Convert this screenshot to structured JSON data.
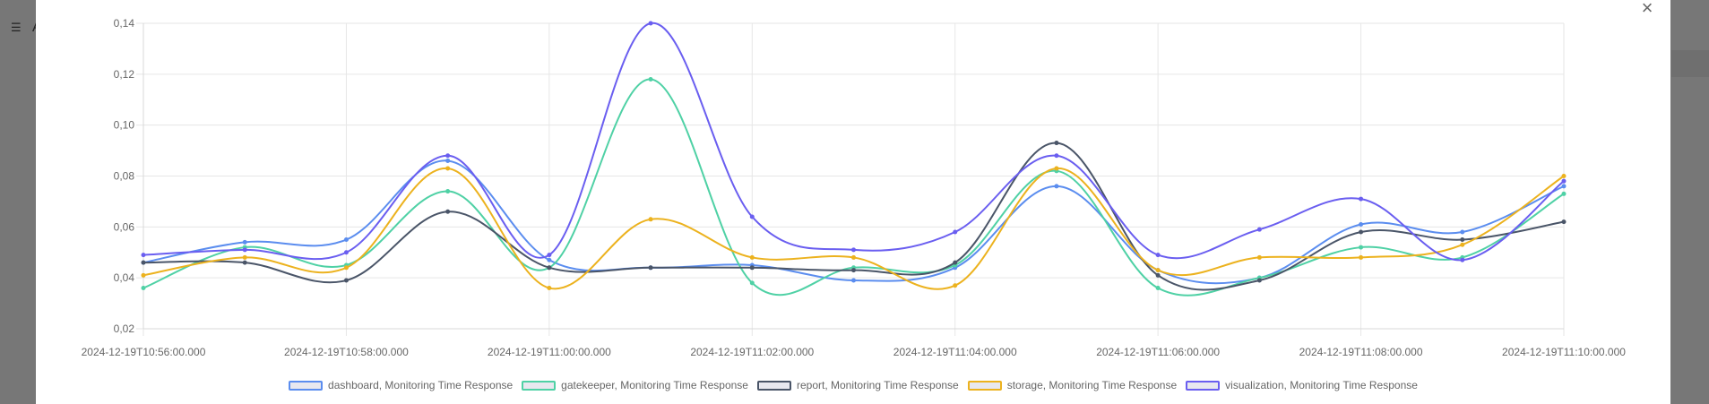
{
  "background": {
    "menu_icon": "list-icon",
    "partial_title": "A"
  },
  "modal": {
    "close_icon": "close-icon",
    "close_glyph": "×"
  },
  "chart_data": {
    "type": "line",
    "title": "",
    "xlabel": "",
    "ylabel": "",
    "ylim": [
      0.02,
      0.14
    ],
    "y_ticks": [
      "0,14",
      "0,12",
      "0,10",
      "0,08",
      "0,06",
      "0,04",
      "0,02"
    ],
    "y_tick_values": [
      0.14,
      0.12,
      0.1,
      0.08,
      0.06,
      0.04,
      0.02
    ],
    "x_tick_labels": [
      "2024-12-19T10:56:00.000",
      "2024-12-19T10:58:00.000",
      "2024-12-19T11:00:00.000",
      "2024-12-19T11:02:00.000",
      "2024-12-19T11:04:00.000",
      "2024-12-19T11:06:00.000",
      "2024-12-19T11:08:00.000",
      "2024-12-19T11:10:00.000"
    ],
    "x": [
      "10:56",
      "10:57",
      "10:58",
      "10:59",
      "11:00",
      "11:01",
      "11:02",
      "11:03",
      "11:04",
      "11:05",
      "11:06",
      "11:07",
      "11:08",
      "11:09",
      "11:10"
    ],
    "grid": true,
    "legend_position": "bottom",
    "series": [
      {
        "name": "dashboard, Monitoring Time Response",
        "color": "#5b8def",
        "values": [
          0.046,
          0.054,
          0.055,
          0.086,
          0.047,
          0.044,
          0.045,
          0.039,
          0.044,
          0.076,
          0.043,
          0.04,
          0.061,
          0.058,
          0.076
        ]
      },
      {
        "name": "gatekeeper, Monitoring Time Response",
        "color": "#4fd1a5",
        "values": [
          0.036,
          0.052,
          0.045,
          0.074,
          0.044,
          0.118,
          0.038,
          0.044,
          0.045,
          0.082,
          0.036,
          0.04,
          0.052,
          0.048,
          0.073
        ]
      },
      {
        "name": "report, Monitoring Time Response",
        "color": "#4a5568",
        "values": [
          0.046,
          0.046,
          0.039,
          0.066,
          0.044,
          0.044,
          0.044,
          0.043,
          0.046,
          0.093,
          0.041,
          0.039,
          0.058,
          0.055,
          0.062
        ]
      },
      {
        "name": "storage, Monitoring Time Response",
        "color": "#ecb21e",
        "values": [
          0.041,
          0.048,
          0.044,
          0.083,
          0.036,
          0.063,
          0.048,
          0.048,
          0.037,
          0.083,
          0.043,
          0.048,
          0.048,
          0.053,
          0.08
        ]
      },
      {
        "name": "visualization, Monitoring Time Response",
        "color": "#6a5ef0",
        "values": [
          0.049,
          0.051,
          0.05,
          0.088,
          0.049,
          0.14,
          0.064,
          0.051,
          0.058,
          0.088,
          0.049,
          0.059,
          0.071,
          0.047,
          0.078
        ]
      }
    ]
  }
}
